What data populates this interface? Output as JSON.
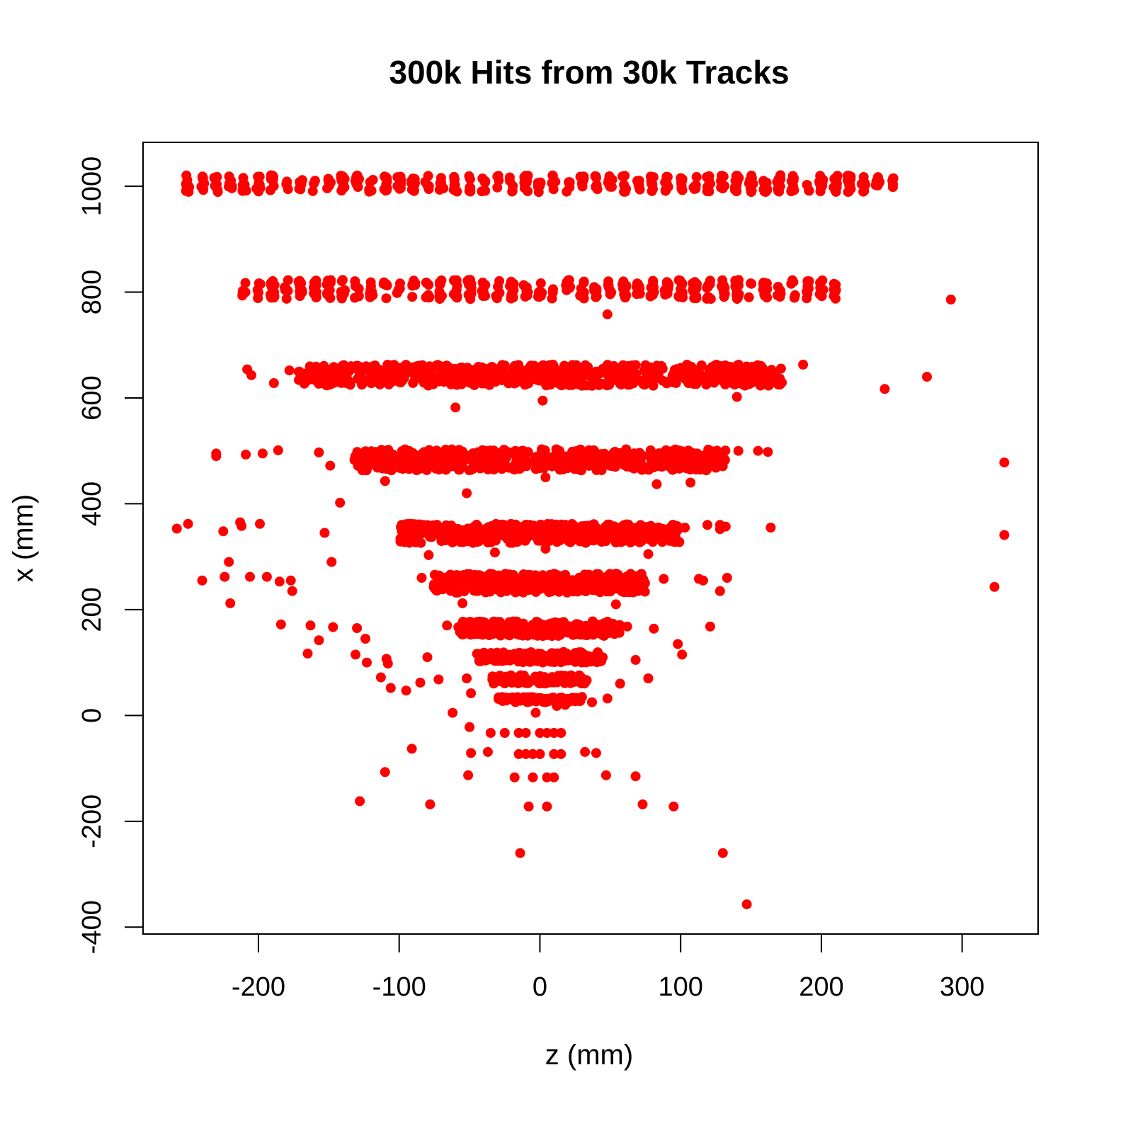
{
  "chart_data": {
    "type": "scatter",
    "title": "300k Hits from 30k Tracks",
    "xlabel": "z (mm)",
    "ylabel": "x (mm)",
    "xlim": [
      -282,
      354
    ],
    "ylim": [
      -413,
      1083
    ],
    "x_ticks": [
      -200,
      -100,
      0,
      100,
      200,
      300
    ],
    "y_ticks": [
      -400,
      -200,
      0,
      200,
      400,
      600,
      800,
      1000
    ],
    "grid": false,
    "legend": "none",
    "point_color": "#ff0000",
    "bands": [
      {
        "x_range": [
          -255,
          255
        ],
        "y_center": 1005,
        "y_spread": 16,
        "n": 420,
        "striped": true
      },
      {
        "x_range": [
          -212,
          212
        ],
        "y_center": 805,
        "y_spread": 18,
        "n": 380,
        "striped": true
      },
      {
        "x_range": [
          -172,
          172
        ],
        "y_center": 643,
        "y_spread": 20,
        "n": 650
      },
      {
        "x_range": [
          -132,
          132
        ],
        "y_center": 483,
        "y_spread": 20,
        "n": 520
      },
      {
        "x_range": [
          -100,
          100
        ],
        "y_center": 344,
        "y_spread": 18,
        "n": 400
      },
      {
        "x_range": [
          -76,
          76
        ],
        "y_center": 250,
        "y_spread": 18,
        "n": 320
      },
      {
        "x_range": [
          -58,
          58
        ],
        "y_center": 164,
        "y_spread": 14,
        "n": 240
      },
      {
        "x_range": [
          -45,
          45
        ],
        "y_center": 110,
        "y_spread": 10,
        "n": 170
      },
      {
        "x_range": [
          -34,
          34
        ],
        "y_center": 68,
        "y_spread": 8,
        "n": 130
      },
      {
        "x_range": [
          -30,
          30
        ],
        "y_center": 30,
        "y_spread": 5,
        "n": 100
      }
    ],
    "scatter_points": [
      [
        -35,
        -33
      ],
      [
        -25,
        -33
      ],
      [
        -15,
        -33
      ],
      [
        -10,
        -33
      ],
      [
        0,
        -33
      ],
      [
        5,
        -33
      ],
      [
        10,
        -33
      ],
      [
        15,
        -33
      ],
      [
        -15,
        -73
      ],
      [
        -10,
        -73
      ],
      [
        -5,
        -73
      ],
      [
        0,
        -73
      ],
      [
        10,
        -73
      ],
      [
        15,
        -73
      ],
      [
        -18,
        -117
      ],
      [
        -5,
        -117
      ],
      [
        5,
        -117
      ],
      [
        10,
        -117
      ],
      [
        -8,
        -172
      ],
      [
        5,
        -172
      ],
      [
        -14,
        -260
      ],
      [
        130,
        -260
      ],
      [
        147,
        -357
      ],
      [
        -128,
        -162
      ],
      [
        -78,
        -168
      ],
      [
        73,
        -168
      ],
      [
        95,
        -172
      ],
      [
        -110,
        -107
      ],
      [
        -51,
        -113
      ],
      [
        47,
        -113
      ],
      [
        68,
        -115
      ],
      [
        -91,
        -63
      ],
      [
        -49,
        -71
      ],
      [
        -37,
        -69
      ],
      [
        32,
        -69
      ],
      [
        40,
        -71
      ],
      [
        -50,
        -22
      ],
      [
        -62,
        5
      ],
      [
        -3,
        5
      ],
      [
        12,
        18
      ],
      [
        18,
        20
      ],
      [
        37,
        25
      ],
      [
        48,
        32
      ],
      [
        -113,
        72
      ],
      [
        -106,
        52
      ],
      [
        -95,
        47
      ],
      [
        -85,
        62
      ],
      [
        -72,
        68
      ],
      [
        -52,
        70
      ],
      [
        -49,
        42
      ],
      [
        57,
        60
      ],
      [
        77,
        70
      ],
      [
        -131,
        115
      ],
      [
        -123,
        100
      ],
      [
        -109,
        107
      ],
      [
        -108,
        98
      ],
      [
        -80,
        110
      ],
      [
        68,
        105
      ],
      [
        98,
        135
      ],
      [
        101,
        115
      ],
      [
        -184,
        172
      ],
      [
        -163,
        170
      ],
      [
        -147,
        167
      ],
      [
        -130,
        165
      ],
      [
        -124,
        145
      ],
      [
        -157,
        142
      ],
      [
        -165,
        117
      ],
      [
        -66,
        170
      ],
      [
        62,
        168
      ],
      [
        81,
        164
      ],
      [
        121,
        168
      ],
      [
        -240,
        255
      ],
      [
        -224,
        262
      ],
      [
        -221,
        290
      ],
      [
        -220,
        212
      ],
      [
        -206,
        262
      ],
      [
        -194,
        262
      ],
      [
        -185,
        253
      ],
      [
        -177,
        255
      ],
      [
        -176,
        235
      ],
      [
        -84,
        260
      ],
      [
        -55,
        212
      ],
      [
        54,
        210
      ],
      [
        88,
        258
      ],
      [
        113,
        258
      ],
      [
        116,
        255
      ],
      [
        128,
        235
      ],
      [
        133,
        260
      ],
      [
        -258,
        353
      ],
      [
        -250,
        362
      ],
      [
        -225,
        348
      ],
      [
        -213,
        365
      ],
      [
        -212,
        358
      ],
      [
        -199,
        362
      ],
      [
        -153,
        345
      ],
      [
        -148,
        290
      ],
      [
        -79,
        303
      ],
      [
        -32,
        308
      ],
      [
        4,
        315
      ],
      [
        77,
        305
      ],
      [
        103,
        355
      ],
      [
        119,
        360
      ],
      [
        128,
        360
      ],
      [
        128,
        352
      ],
      [
        132,
        357
      ],
      [
        164,
        355
      ],
      [
        -230,
        495
      ],
      [
        -230,
        490
      ],
      [
        -209,
        493
      ],
      [
        -197,
        495
      ],
      [
        -186,
        501
      ],
      [
        -157,
        497
      ],
      [
        -149,
        472
      ],
      [
        -142,
        402
      ],
      [
        -110,
        443
      ],
      [
        -52,
        420
      ],
      [
        4,
        450
      ],
      [
        83,
        437
      ],
      [
        107,
        440
      ],
      [
        141,
        500
      ],
      [
        155,
        500
      ],
      [
        162,
        498
      ],
      [
        -208,
        654
      ],
      [
        -205,
        643
      ],
      [
        -189,
        628
      ],
      [
        -178,
        652
      ],
      [
        -60,
        582
      ],
      [
        2,
        595
      ],
      [
        140,
        602
      ],
      [
        187,
        663
      ],
      [
        48,
        758
      ],
      [
        245,
        617
      ],
      [
        275,
        640
      ],
      [
        292,
        786
      ],
      [
        330,
        478
      ],
      [
        330,
        341
      ],
      [
        323,
        243
      ]
    ]
  }
}
